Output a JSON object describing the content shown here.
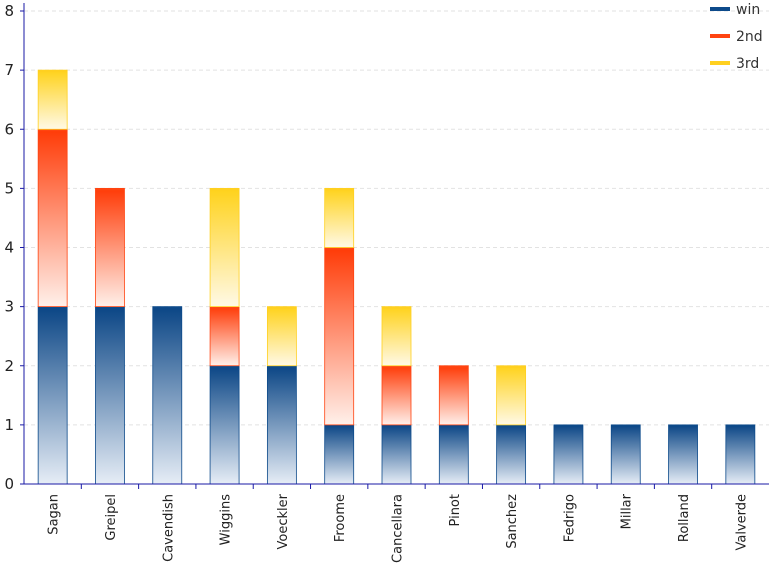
{
  "chart_data": {
    "type": "bar",
    "stacked": true,
    "title": "",
    "xlabel": "",
    "ylabel": "",
    "ylim": [
      0,
      8
    ],
    "yticks": [
      0,
      1,
      2,
      3,
      4,
      5,
      6,
      7,
      8
    ],
    "grid": true,
    "legend_position": "top-right",
    "categories": [
      "Sagan",
      "Greipel",
      "Cavendish",
      "Wiggins",
      "Voeckler",
      "Froome",
      "Cancellara",
      "Pinot",
      "Sanchez",
      "Fedrigo",
      "Millar",
      "Rolland",
      "Valverde"
    ],
    "series": [
      {
        "name": "win",
        "color": "#0d4a8a",
        "values": [
          3,
          3,
          3,
          2,
          2,
          1,
          1,
          1,
          1,
          1,
          1,
          1,
          1
        ]
      },
      {
        "name": "2nd",
        "color": "#ff4411",
        "values": [
          3,
          2,
          0,
          1,
          0,
          3,
          1,
          1,
          0,
          0,
          0,
          0,
          0
        ]
      },
      {
        "name": "3rd",
        "color": "#ffd020",
        "values": [
          1,
          0,
          0,
          2,
          1,
          1,
          1,
          0,
          1,
          0,
          0,
          0,
          0
        ]
      }
    ]
  }
}
